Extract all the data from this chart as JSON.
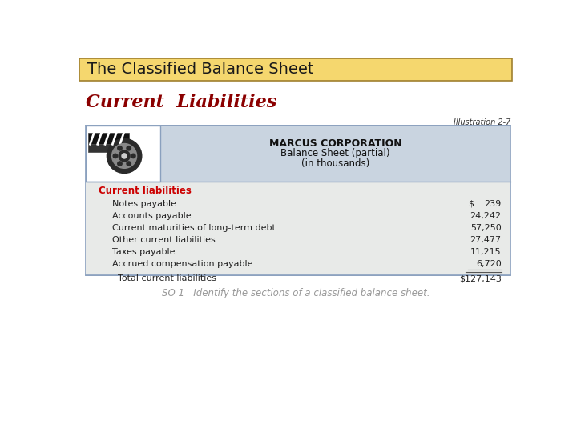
{
  "title": "The Classified Balance Sheet",
  "title_bg": "#F5D76E",
  "title_border": "#A08030",
  "section_heading": "Current  Liabilities",
  "section_heading_color": "#8B0000",
  "illustration_label": "Illustration 2-7",
  "corp_name": "MARCUS CORPORATION",
  "balance_sheet_sub1": "Balance Sheet (partial)",
  "balance_sheet_sub2": "(in thousands)",
  "category_label": "Current liabilities",
  "category_label_color": "#CC0000",
  "line_items": [
    {
      "label": "Notes payable",
      "value": "239",
      "has_dollar": true
    },
    {
      "label": "Accounts payable",
      "value": "24,242",
      "has_dollar": false
    },
    {
      "label": "Current maturities of long-term debt",
      "value": "57,250",
      "has_dollar": false
    },
    {
      "label": "Other current liabilities",
      "value": "27,477",
      "has_dollar": false
    },
    {
      "label": "Taxes payable",
      "value": "11,215",
      "has_dollar": false
    },
    {
      "label": "Accrued compensation payable",
      "value": "6,720",
      "has_dollar": false,
      "underline": true
    }
  ],
  "total_label": "Total current liabilities",
  "total_value": "$127,143",
  "footer": "SO 1   Identify the sections of a classified balance sheet.",
  "footer_color": "#999999",
  "bg_color": "#FFFFFF",
  "table_border_color": "#8AA0BE",
  "header_area_bg": "#C9D4E0",
  "body_bg": "#E8EAE8",
  "img_border_color": "#8AA0BE"
}
